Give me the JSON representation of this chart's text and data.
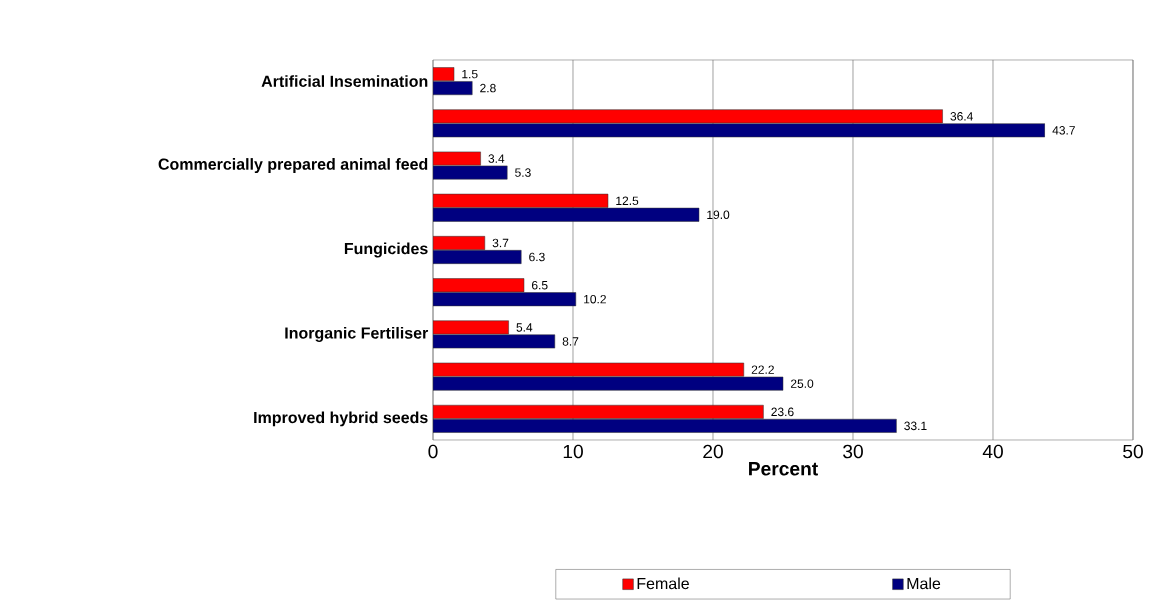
{
  "chart_data": {
    "type": "bar",
    "orientation": "horizontal",
    "categories": [
      "Artificial Insemination",
      null,
      "Commercially prepared animal feed",
      null,
      "Fungicides",
      null,
      "Inorganic Fertiliser",
      null,
      "Improved hybrid seeds"
    ],
    "series": [
      {
        "name": "Female",
        "color": "#ff0000",
        "values": [
          1.5,
          36.4,
          3.4,
          12.5,
          3.7,
          6.5,
          5.4,
          22.2,
          23.6
        ],
        "value_labels": [
          "1.5",
          "36.4",
          "3.4",
          "12.5",
          "3.7",
          "6.5",
          "5.4",
          "22.2",
          "23.6"
        ]
      },
      {
        "name": "Male",
        "color": "#000080",
        "values": [
          2.8,
          43.7,
          5.3,
          19.0,
          6.3,
          10.2,
          8.7,
          25.0,
          33.1
        ],
        "value_labels": [
          "2.8",
          "43.7",
          "5.3",
          "19.0",
          "6.3",
          "10.2",
          "8.7",
          "25.0",
          "33.1"
        ]
      }
    ],
    "xlabel": "Percent",
    "xlim": [
      0,
      50
    ],
    "xticks": [
      0,
      10,
      20,
      30,
      40,
      50
    ],
    "grid": "x",
    "legend": "bottom"
  }
}
